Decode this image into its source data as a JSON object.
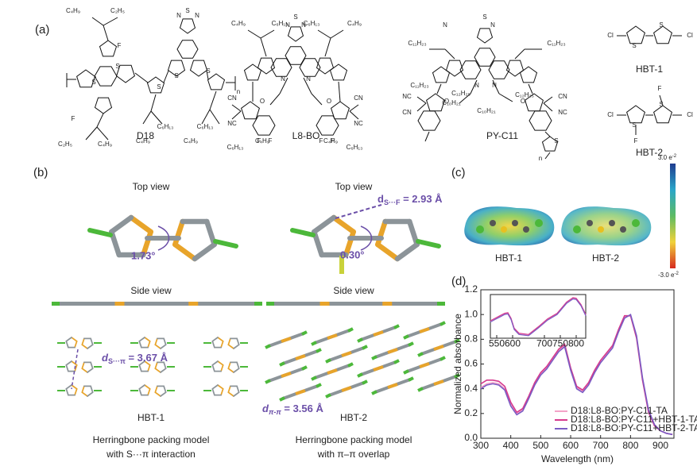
{
  "panel_labels": [
    "(a)",
    "(b)",
    "(c)",
    "(d)"
  ],
  "molecules": [
    {
      "name": "D18",
      "labels": [
        "C₄H₉",
        "C₂H₅",
        "F",
        "S",
        "S",
        "S",
        "S",
        "N",
        "S",
        "N",
        "S",
        "C₆H₁₃",
        "C₄H₉",
        "C₆H₁₃",
        "C₄H₉",
        "F",
        "C₂H₅",
        "C₄H₉",
        "n"
      ]
    },
    {
      "name": "L8-BO",
      "labels": [
        "C₄H₉",
        "C₆H₁₃",
        "N",
        "S",
        "N",
        "C₆H₁₃",
        "C₄H₉",
        "N",
        "N",
        "CN",
        "NC",
        "O",
        "O",
        "CN",
        "NC",
        "C₄H₉",
        "C₆H₁₃",
        "C₆H₁₃",
        "C₄H₉",
        "F",
        "F",
        "F",
        "F"
      ]
    },
    {
      "name": "PY-C11",
      "labels": [
        "C₁₁H₂₃",
        "N",
        "S",
        "N",
        "C₁₁H₂₃",
        "C₁₁H₂₃",
        "N",
        "N",
        "C₁₀H₂₁",
        "C₁₀H₂₁",
        "C₁₂H₂₅",
        "C₁₂H₂₅",
        "NC",
        "CN",
        "O",
        "O",
        "CN",
        "NC",
        "S",
        "n"
      ]
    },
    {
      "name": "HBT-1",
      "labels": [
        "Cl",
        "S",
        "S",
        "Cl"
      ]
    },
    {
      "name": "HBT-2",
      "labels": [
        "Cl",
        "S",
        "F",
        "F",
        "S",
        "Cl"
      ]
    }
  ],
  "panel_b": {
    "left": {
      "top_view": "Top view",
      "angle": "1.73°",
      "side_view": "Side view",
      "distance": {
        "d": "d",
        "sub": "S···π",
        "rest": " = 3.67 Å"
      },
      "name": "HBT-1",
      "caption": [
        "Herringbone packing model",
        "with S···π interaction"
      ]
    },
    "right": {
      "top_view": "Top view",
      "angle": "0.30°",
      "side_view": "Side view",
      "top_distance": {
        "d": "d",
        "sub": "S···F",
        "rest": " = 2.93 Å"
      },
      "distance": {
        "d": "d",
        "sub": "π-π",
        "rest": " = 3.56 Å"
      },
      "name": "HBT-2",
      "caption": [
        "Herringbone packing model",
        "with π–π overlap"
      ]
    }
  },
  "panel_c": {
    "colorbar_max": {
      "base": "3.0 e",
      "exp": "-2"
    },
    "colorbar_min": {
      "base": "-3.0 e",
      "exp": "-2"
    },
    "labels": [
      "HBT-1",
      "HBT-2"
    ]
  },
  "chart_data": [
    {
      "type": "line",
      "xlabel": "Wavelength (nm)",
      "ylabel": "Normalized absorbance",
      "xlim": [
        300,
        945
      ],
      "ylim": [
        0,
        1.2
      ],
      "xticks": [
        300,
        400,
        500,
        600,
        700,
        800,
        900
      ],
      "yticks": [
        {
          "value": 0,
          "label": "0.0"
        },
        {
          "value": 0.2,
          "label": "0.2"
        },
        {
          "value": 0.4,
          "label": "0.4"
        },
        {
          "value": 0.6,
          "label": "0.6"
        },
        {
          "value": 0.8,
          "label": "0.8"
        },
        {
          "value": 1,
          "label": "1.0"
        },
        {
          "value": 1.2,
          "label": "1.2"
        }
      ],
      "legend": "lower right",
      "x": [
        300,
        320,
        340,
        360,
        380,
        400,
        420,
        440,
        460,
        480,
        500,
        520,
        540,
        560,
        580,
        600,
        620,
        640,
        660,
        680,
        700,
        720,
        740,
        760,
        780,
        800,
        820,
        840,
        860,
        880,
        900,
        920,
        940
      ],
      "series": [
        {
          "name": "D18:L8-BO:PY-C11-TA",
          "color": "#f4a3c8",
          "values": [
            0.41,
            0.44,
            0.45,
            0.44,
            0.4,
            0.27,
            0.2,
            0.23,
            0.33,
            0.44,
            0.52,
            0.57,
            0.64,
            0.71,
            0.75,
            0.56,
            0.41,
            0.38,
            0.44,
            0.54,
            0.62,
            0.68,
            0.74,
            0.87,
            0.98,
            0.99,
            0.82,
            0.48,
            0.22,
            0.11,
            0.06,
            0.04,
            0.03
          ]
        },
        {
          "name": "D18:L8-BO:PY-C11+HBT-1-TA",
          "color": "#d63a8e",
          "values": [
            0.44,
            0.47,
            0.47,
            0.46,
            0.42,
            0.29,
            0.21,
            0.24,
            0.34,
            0.45,
            0.53,
            0.58,
            0.65,
            0.72,
            0.76,
            0.57,
            0.42,
            0.39,
            0.45,
            0.55,
            0.63,
            0.69,
            0.75,
            0.88,
            0.99,
            0.99,
            0.81,
            0.47,
            0.21,
            0.1,
            0.06,
            0.04,
            0.03
          ]
        },
        {
          "name": "D18:L8-BO:PY-C11+HBT-2-TA",
          "color": "#7b5cc4",
          "values": [
            0.4,
            0.43,
            0.44,
            0.43,
            0.39,
            0.26,
            0.19,
            0.22,
            0.32,
            0.43,
            0.51,
            0.56,
            0.63,
            0.7,
            0.74,
            0.55,
            0.4,
            0.37,
            0.43,
            0.53,
            0.61,
            0.67,
            0.73,
            0.86,
            0.97,
            1.0,
            0.83,
            0.49,
            0.23,
            0.11,
            0.06,
            0.04,
            0.03
          ]
        }
      ]
    },
    {
      "type": "line",
      "xlim": [
        530,
        830
      ],
      "ylim": [
        0.35,
        1.05
      ],
      "xticks": [
        550,
        600,
        700,
        750,
        800
      ],
      "x": [
        530,
        545,
        560,
        575,
        585,
        595,
        605,
        620,
        650,
        680,
        710,
        740,
        770,
        790,
        800,
        815,
        830
      ],
      "series": [
        {
          "color": "#f4a3c8",
          "values": [
            0.62,
            0.66,
            0.7,
            0.74,
            0.75,
            0.66,
            0.5,
            0.42,
            0.4,
            0.52,
            0.65,
            0.74,
            0.92,
            0.99,
            0.98,
            0.88,
            0.72
          ]
        },
        {
          "color": "#d63a8e",
          "values": [
            0.63,
            0.67,
            0.71,
            0.75,
            0.76,
            0.67,
            0.51,
            0.43,
            0.41,
            0.53,
            0.66,
            0.75,
            0.93,
            1.0,
            0.99,
            0.89,
            0.73
          ]
        },
        {
          "color": "#7b5cc4",
          "values": [
            0.61,
            0.65,
            0.69,
            0.73,
            0.74,
            0.65,
            0.49,
            0.41,
            0.39,
            0.51,
            0.64,
            0.73,
            0.91,
            0.98,
            0.97,
            0.87,
            0.71
          ]
        }
      ]
    }
  ]
}
